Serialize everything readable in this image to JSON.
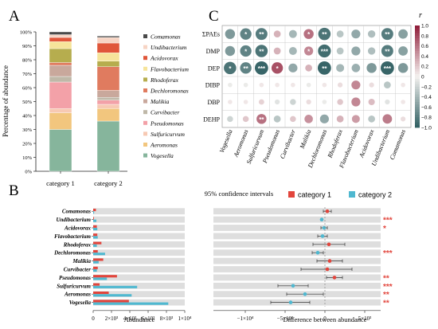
{
  "panels": {
    "A": "A",
    "B": "B",
    "C": "C"
  },
  "colors": {
    "Comamonas": "#4a4a4a",
    "Undibacterium": "#f7d4c4",
    "Acidovorax": "#e0563a",
    "Flavobacterium": "#f6e49a",
    "Rhodoferax": "#b6ad4e",
    "Dechloromonas": "#e07b5f",
    "Malikia": "#c9a89c",
    "Curvibacter": "#bfb8a8",
    "Pseudomonas": "#f3a1a8",
    "Sulfuricurvum": "#f7c9b3",
    "Aeromonas": "#f2c67e",
    "Vogesella": "#86b59c",
    "cat1": "#e2453c",
    "cat2": "#4fb8d0",
    "sig": "#e2453c",
    "grey_band": "#dedede",
    "corr_high": "#8e1b37",
    "corr_low": "#2e5e61"
  },
  "chart_data": [
    {
      "panel": "A",
      "type": "bar",
      "stacked": true,
      "ylabel": "Percentage of abundance",
      "ylim": [
        0,
        100
      ],
      "yticks": [
        "0%",
        "10%",
        "20%",
        "30%",
        "40%",
        "50%",
        "60%",
        "70%",
        "80%",
        "90%",
        "100%"
      ],
      "categories": [
        "category 1",
        "category 2"
      ],
      "series": [
        {
          "name": "Vogesella",
          "values": [
            30,
            36
          ]
        },
        {
          "name": "Aeromonas",
          "values": [
            12,
            9
          ]
        },
        {
          "name": "Sulfuricurvum",
          "values": [
            3,
            3
          ]
        },
        {
          "name": "Pseudomonas",
          "values": [
            19,
            3
          ]
        },
        {
          "name": "Curvibacter",
          "values": [
            4,
            2
          ]
        },
        {
          "name": "Malikia",
          "values": [
            8,
            5
          ]
        },
        {
          "name": "Dechloromonas",
          "values": [
            2,
            17
          ]
        },
        {
          "name": "Rhodoferax",
          "values": [
            10,
            4
          ]
        },
        {
          "name": "Flavobacterium",
          "values": [
            5,
            6
          ]
        },
        {
          "name": "Acidovorax",
          "values": [
            3,
            7
          ]
        },
        {
          "name": "Undibacterium",
          "values": [
            2,
            4
          ]
        },
        {
          "name": "Comamonas",
          "values": [
            2,
            1
          ]
        }
      ],
      "legend": [
        "Comamonas",
        "Undibacterium",
        "Acidovorax",
        "Flavobacterium",
        "Rhodoferax",
        "Dechloromonas",
        "Malikia",
        "Curvibacter",
        "Pseudomonas",
        "Sulfuricurvum",
        "Aeromonas",
        "Vogesella"
      ]
    },
    {
      "panel": "B-left",
      "type": "bar",
      "orientation": "horizontal",
      "xlabel": "Abundance",
      "xlim": [
        0,
        10000
      ],
      "xticks": [
        {
          "v": 0,
          "t": "0"
        },
        {
          "v": 2000,
          "t": "2×10³"
        },
        {
          "v": 4000,
          "t": "4×10³"
        },
        {
          "v": 6000,
          "t": "6×10³"
        },
        {
          "v": 8000,
          "t": "8×10³"
        },
        {
          "v": 10000,
          "t": "1×10⁴"
        }
      ],
      "categories": [
        "Comamonas",
        "Undibacterium",
        "Acidovorax",
        "Flavobacterium",
        "Rhodoferax",
        "Dechloromonas",
        "Malikia",
        "Curvibacter",
        "Pseudomonas",
        "Sulfuricurvum",
        "Aeromonas",
        "Vogesella"
      ],
      "series": [
        {
          "name": "category 1",
          "values": [
            300,
            80,
            400,
            450,
            900,
            500,
            1100,
            500,
            2600,
            700,
            1700,
            3900
          ]
        },
        {
          "name": "category 2",
          "values": [
            100,
            350,
            450,
            500,
            400,
            1300,
            600,
            400,
            1500,
            4800,
            4200,
            8200
          ]
        }
      ]
    },
    {
      "panel": "B-right",
      "type": "scatter",
      "title": "95% confidence intervals",
      "xlabel": "Difference between abundance",
      "xlim": [
        -14000,
        7000
      ],
      "xticks": [
        {
          "v": -10000,
          "t": "−1×10⁴"
        },
        {
          "v": -5000,
          "t": "−5×10³"
        },
        {
          "v": 0,
          "t": "0"
        },
        {
          "v": 5000,
          "t": "5×10³"
        }
      ],
      "categories": [
        "Comamonas",
        "Undibacterium",
        "Acidovorax",
        "Flavobacterium",
        "Rhodoferax",
        "Dechloromonas",
        "Malikia",
        "Curvibacter",
        "Pseudomonas",
        "Sulfuricurvum",
        "Aeromonas",
        "Vogesella"
      ],
      "points": [
        {
          "diff": 300,
          "lo": -200,
          "hi": 800,
          "series": "category 1",
          "sig": ""
        },
        {
          "diff": -400,
          "lo": -500,
          "hi": -300,
          "series": "category 2",
          "sig": "***"
        },
        {
          "diff": -100,
          "lo": -500,
          "hi": 300,
          "series": "category 2",
          "sig": "*"
        },
        {
          "diff": -300,
          "lo": -900,
          "hi": 300,
          "series": "category 2",
          "sig": ""
        },
        {
          "diff": 500,
          "lo": -1500,
          "hi": 2500,
          "series": "category 1",
          "sig": ""
        },
        {
          "diff": -900,
          "lo": -1600,
          "hi": -200,
          "series": "category 2",
          "sig": "***"
        },
        {
          "diff": 600,
          "lo": -1000,
          "hi": 2200,
          "series": "category 1",
          "sig": ""
        },
        {
          "diff": 300,
          "lo": -3000,
          "hi": 3400,
          "series": "category 1",
          "sig": ""
        },
        {
          "diff": 1200,
          "lo": 200,
          "hi": 2200,
          "series": "category 1",
          "sig": "**"
        },
        {
          "diff": -4000,
          "lo": -5900,
          "hi": -2100,
          "series": "category 2",
          "sig": "***"
        },
        {
          "diff": -2500,
          "lo": -4800,
          "hi": -200,
          "series": "category 2",
          "sig": "**"
        },
        {
          "diff": -4300,
          "lo": -6800,
          "hi": -1900,
          "series": "category 2",
          "sig": "**"
        }
      ]
    },
    {
      "panel": "C",
      "type": "heatmap",
      "colorbar_title": "r",
      "colorbar_ticks": [
        "1.0",
        "0.8",
        "0.6",
        "0.4",
        "0.2",
        "0",
        "−0.2",
        "−0.4",
        "−0.6",
        "−0.8",
        "−1.0"
      ],
      "rows": [
        "ΣPAEs",
        "DMP",
        "DEP",
        "DIBP",
        "DBP",
        "DEHP"
      ],
      "cols": [
        "Vogesella",
        "Aeromonas",
        "Sulfuricurvum",
        "Pseudomonas",
        "Curvibacter",
        "Malikia",
        "Dechloromonas",
        "Rhodoferax",
        "Flavobacterium",
        "Acidovorax",
        "Undibacterium",
        "Comamonas"
      ],
      "r": [
        [
          -0.6,
          -0.75,
          -0.8,
          0.3,
          -0.4,
          0.6,
          -0.85,
          -0.3,
          -0.5,
          -0.35,
          -0.8,
          -0.55
        ],
        [
          -0.6,
          -0.75,
          -0.85,
          0.3,
          -0.4,
          0.5,
          -0.9,
          -0.3,
          -0.5,
          -0.35,
          -0.8,
          -0.55
        ],
        [
          -0.85,
          -0.75,
          -0.95,
          0.75,
          -0.5,
          0.3,
          -0.95,
          -0.4,
          -0.45,
          -0.6,
          -0.95,
          -0.6
        ],
        [
          -0.05,
          -0.05,
          0.05,
          0.05,
          0.05,
          -0.05,
          0.05,
          0.1,
          0.5,
          0.1,
          -0.3,
          0.05
        ],
        [
          0.05,
          0.05,
          0.15,
          -0.1,
          -0.2,
          0.1,
          -0.05,
          0.2,
          0.5,
          0.25,
          -0.1,
          0.05
        ],
        [
          -0.2,
          0.2,
          0.6,
          -0.3,
          0.2,
          0.45,
          -0.5,
          0.3,
          0.4,
          -0.3,
          0.55,
          0.1
        ]
      ],
      "stars": [
        [
          "",
          "*",
          "**",
          "",
          "",
          "*",
          "**",
          "",
          "",
          "",
          "**",
          ""
        ],
        [
          "",
          "*",
          "**",
          "",
          "",
          "*",
          "***",
          "",
          "",
          "",
          "**",
          ""
        ],
        [
          "*",
          "**",
          "***",
          "*",
          "",
          "",
          "**",
          "",
          "",
          "",
          "***",
          ""
        ],
        [
          "",
          "",
          "",
          "",
          "",
          "",
          "",
          "",
          "",
          "",
          "",
          ""
        ],
        [
          "",
          "",
          "",
          "",
          "",
          "",
          "",
          "",
          "",
          "",
          "",
          ""
        ],
        [
          "",
          "",
          "**",
          "",
          "",
          "",
          "",
          "",
          "",
          "",
          "",
          ""
        ]
      ]
    }
  ]
}
